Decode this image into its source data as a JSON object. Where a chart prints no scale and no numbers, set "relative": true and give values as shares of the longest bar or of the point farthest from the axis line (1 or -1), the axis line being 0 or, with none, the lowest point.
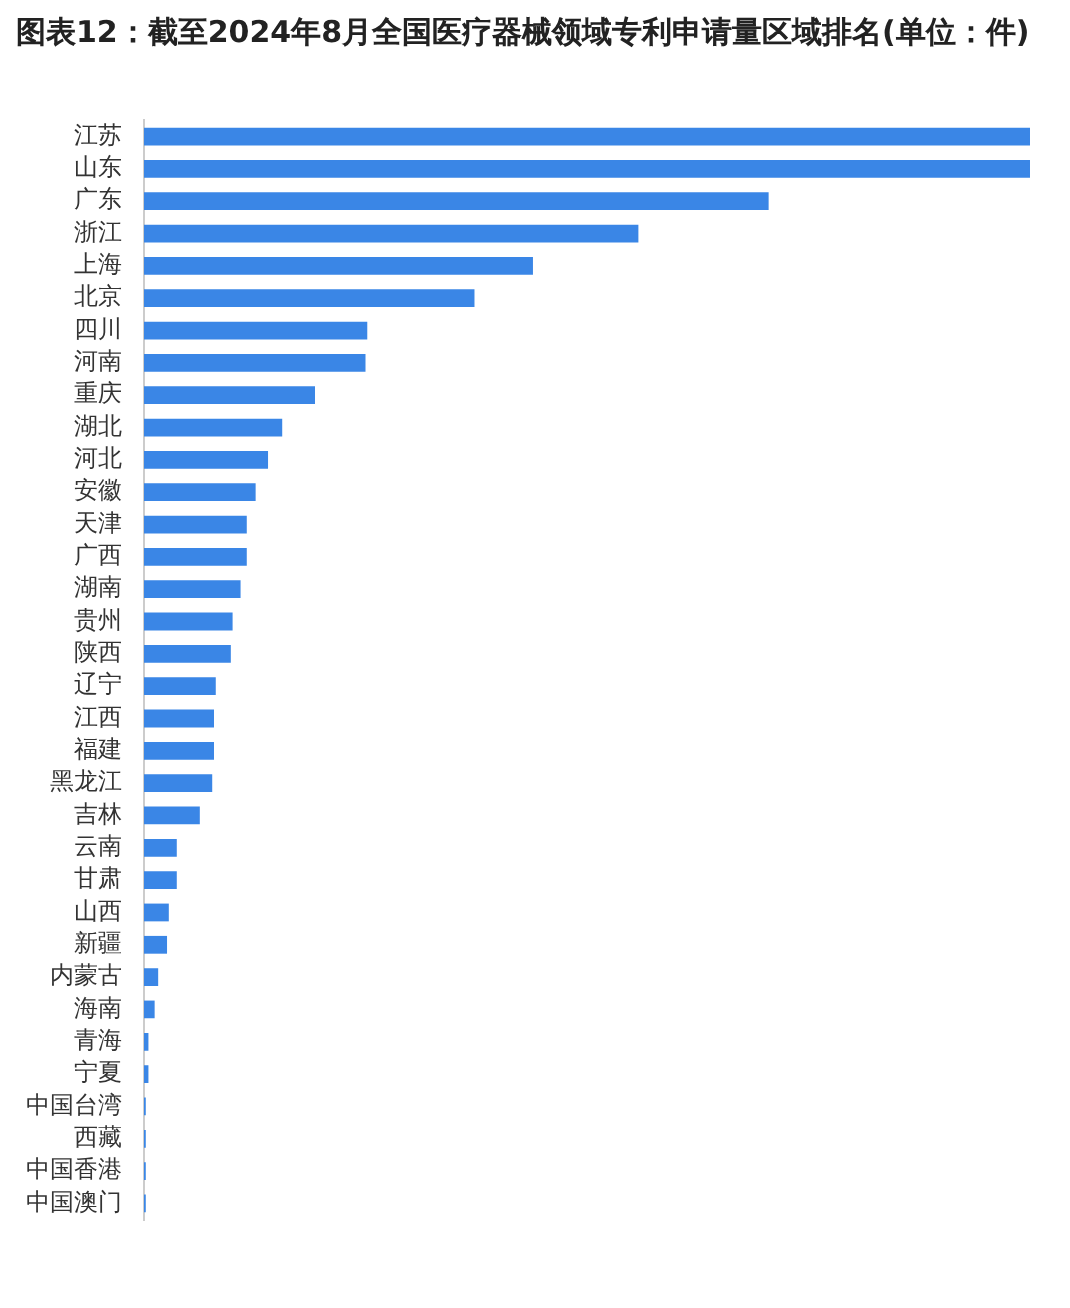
{
  "chart_data": {
    "type": "bar",
    "orientation": "horizontal",
    "relative": true,
    "title": "图表12：截至2024年8月全国医疗器械领域专利申请量区域排名(单位：件)",
    "categories": [
      "江苏",
      "山东",
      "广东",
      "浙江",
      "上海",
      "北京",
      "四川",
      "河南",
      "重庆",
      "湖北",
      "河北",
      "安徽",
      "天津",
      "广西",
      "湖南",
      "贵州",
      "陕西",
      "辽宁",
      "江西",
      "福建",
      "黑龙江",
      "吉林",
      "云南",
      "甘肃",
      "山西",
      "新疆",
      "内蒙古",
      "海南",
      "青海",
      "宁夏",
      "中国台湾",
      "西藏",
      "中国香港",
      "中国澳门"
    ],
    "values": [
      1,
      1,
      0.705,
      0.558,
      0.439,
      0.373,
      0.252,
      0.25,
      0.193,
      0.156,
      0.14,
      0.126,
      0.116,
      0.116,
      0.109,
      0.1,
      0.098,
      0.081,
      0.079,
      0.079,
      0.077,
      0.063,
      0.037,
      0.037,
      0.028,
      0.026,
      0.016,
      0.012,
      0.005,
      0.005,
      0.002,
      0.002,
      0.002,
      0.002
    ],
    "color": "#3a86e6"
  }
}
